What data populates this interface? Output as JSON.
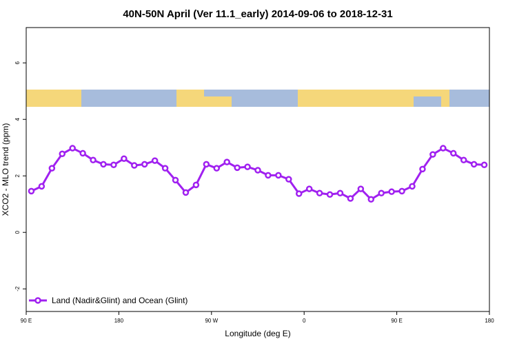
{
  "chart_data": {
    "type": "line",
    "title": "40N-50N April (Ver 11.1_early)   2014-09-06 to 2018-12-31",
    "xlabel": "Longitude (deg E)",
    "ylabel": "XCO2 - MLO trend (ppm)",
    "x": [
      95,
      105,
      115,
      125,
      135,
      145,
      155,
      165,
      175,
      185,
      195,
      205,
      215,
      225,
      235,
      245,
      255,
      265,
      275,
      285,
      295,
      305,
      315,
      325,
      335,
      345,
      355,
      365,
      375,
      385,
      395,
      405,
      415,
      425,
      435,
      445,
      455,
      465,
      475,
      485,
      495,
      505,
      515,
      525,
      535
    ],
    "series": [
      {
        "name": "Land (Nadir&Glint) and Ocean (Glint)",
        "color": "#a020f0",
        "values": [
          1.46,
          1.63,
          2.27,
          2.78,
          2.98,
          2.8,
          2.56,
          2.41,
          2.39,
          2.61,
          2.37,
          2.41,
          2.54,
          2.27,
          1.85,
          1.41,
          1.68,
          2.41,
          2.27,
          2.49,
          2.29,
          2.32,
          2.2,
          2.02,
          2.02,
          1.88,
          1.37,
          1.54,
          1.39,
          1.34,
          1.39,
          1.2,
          1.54,
          1.17,
          1.39,
          1.44,
          1.46,
          1.63,
          2.24,
          2.76,
          2.98,
          2.8,
          2.56,
          2.41,
          2.39
        ]
      }
    ],
    "xlim": [
      90,
      540
    ],
    "xticks": [
      {
        "value": 90,
        "label": "90 E"
      },
      {
        "value": 180,
        "label": "180"
      },
      {
        "value": 270,
        "label": "90 W"
      },
      {
        "value": 360,
        "label": "0"
      },
      {
        "value": 450,
        "label": "90 E"
      },
      {
        "value": 540,
        "label": "180"
      }
    ],
    "ylim": [
      -2.8,
      7.25
    ],
    "yticks": [
      -2,
      0,
      2,
      4,
      6
    ],
    "legend": "bottom-left"
  }
}
